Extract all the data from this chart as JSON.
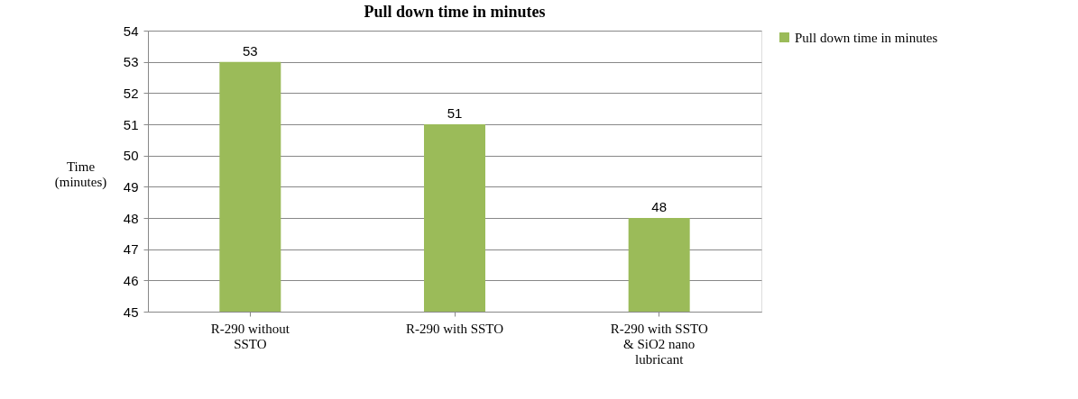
{
  "chart_data": {
    "type": "bar",
    "title": "Pull down time in minutes",
    "ylabel": "Time (minutes)",
    "categories": [
      "R-290 without SSTO",
      "R-290 with SSTO",
      "R-290 with SSTO & SiO2 nano lubricant"
    ],
    "series": [
      {
        "name": "Pull down time in minutes",
        "color": "#9bbb59",
        "values": [
          53,
          51,
          48
        ]
      }
    ],
    "ylim": [
      45,
      54
    ],
    "yticks": [
      45,
      46,
      47,
      48,
      49,
      50,
      51,
      52,
      53,
      54
    ],
    "grid": "y",
    "legend": "right",
    "data_labels": true
  }
}
